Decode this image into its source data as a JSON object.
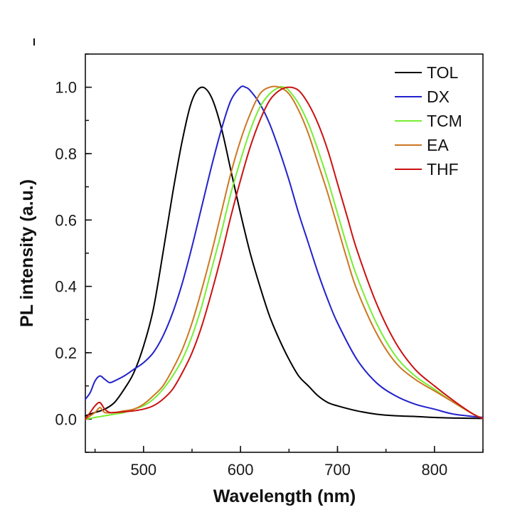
{
  "chart_data": {
    "type": "line",
    "title": "",
    "xlabel": "Wavelength (nm)",
    "ylabel": "PL intensity (a.u.)",
    "xlim": [
      440,
      850
    ],
    "ylim": [
      -0.1,
      1.1
    ],
    "xticks": [
      500,
      600,
      700,
      800
    ],
    "xtick_labels": [
      "500",
      "600",
      "700",
      "800"
    ],
    "yticks": [
      0.0,
      0.2,
      0.4,
      0.6,
      0.8,
      1.0
    ],
    "ytick_labels": [
      "0.0",
      "0.2",
      "0.4",
      "0.6",
      "0.8",
      "1.0"
    ],
    "grid": false,
    "legend_position": "top-right",
    "series": [
      {
        "name": "TOL",
        "color": "#000000",
        "x": [
          440,
          450,
          460,
          470,
          480,
          490,
          500,
          510,
          520,
          530,
          540,
          550,
          560,
          570,
          580,
          590,
          600,
          610,
          620,
          630,
          640,
          650,
          660,
          670,
          680,
          690,
          700,
          720,
          740,
          760,
          780,
          800,
          825,
          850
        ],
        "y": [
          0.01,
          0.02,
          0.03,
          0.05,
          0.09,
          0.14,
          0.22,
          0.33,
          0.5,
          0.68,
          0.84,
          0.96,
          1.0,
          0.97,
          0.88,
          0.75,
          0.62,
          0.5,
          0.4,
          0.31,
          0.24,
          0.18,
          0.13,
          0.1,
          0.07,
          0.05,
          0.04,
          0.025,
          0.015,
          0.01,
          0.008,
          0.005,
          0.003,
          0.002
        ]
      },
      {
        "name": "DX",
        "color": "#2222cc",
        "x": [
          440,
          445,
          450,
          455,
          460,
          465,
          470,
          480,
          490,
          500,
          510,
          520,
          530,
          540,
          550,
          560,
          570,
          580,
          590,
          600,
          605,
          610,
          620,
          630,
          640,
          650,
          660,
          670,
          680,
          690,
          700,
          720,
          740,
          760,
          780,
          800,
          820,
          850
        ],
        "y": [
          0.06,
          0.08,
          0.115,
          0.13,
          0.12,
          0.11,
          0.115,
          0.13,
          0.15,
          0.17,
          0.2,
          0.25,
          0.32,
          0.41,
          0.52,
          0.64,
          0.76,
          0.87,
          0.96,
          1.0,
          1.0,
          0.99,
          0.95,
          0.89,
          0.81,
          0.72,
          0.62,
          0.53,
          0.44,
          0.36,
          0.29,
          0.18,
          0.11,
          0.07,
          0.045,
          0.03,
          0.015,
          0.005
        ]
      },
      {
        "name": "TCM",
        "color": "#77ee33",
        "x": [
          440,
          450,
          460,
          470,
          480,
          490,
          500,
          510,
          520,
          530,
          540,
          550,
          560,
          570,
          580,
          590,
          600,
          610,
          620,
          630,
          640,
          645,
          650,
          660,
          670,
          680,
          690,
          700,
          710,
          720,
          740,
          760,
          780,
          800,
          820,
          840,
          850
        ],
        "y": [
          0.0,
          0.005,
          0.01,
          0.015,
          0.02,
          0.03,
          0.04,
          0.06,
          0.09,
          0.13,
          0.18,
          0.25,
          0.34,
          0.45,
          0.56,
          0.68,
          0.78,
          0.87,
          0.94,
          0.98,
          1.0,
          1.0,
          0.99,
          0.95,
          0.89,
          0.81,
          0.72,
          0.62,
          0.52,
          0.43,
          0.29,
          0.19,
          0.13,
          0.09,
          0.05,
          0.015,
          0.002
        ]
      },
      {
        "name": "EA",
        "color": "#cc7722",
        "x": [
          440,
          450,
          455,
          460,
          470,
          480,
          490,
          500,
          510,
          520,
          530,
          540,
          550,
          560,
          570,
          580,
          590,
          600,
          610,
          620,
          630,
          640,
          650,
          660,
          670,
          680,
          690,
          700,
          710,
          720,
          740,
          760,
          780,
          800,
          820,
          840,
          850
        ],
        "y": [
          0.0,
          0.02,
          0.035,
          0.02,
          0.02,
          0.025,
          0.03,
          0.045,
          0.07,
          0.1,
          0.15,
          0.21,
          0.29,
          0.39,
          0.5,
          0.62,
          0.74,
          0.84,
          0.92,
          0.98,
          1.0,
          1.0,
          0.98,
          0.93,
          0.86,
          0.77,
          0.68,
          0.58,
          0.48,
          0.39,
          0.26,
          0.17,
          0.12,
          0.085,
          0.05,
          0.015,
          0.002
        ]
      },
      {
        "name": "THF",
        "color": "#cc1111",
        "x": [
          440,
          445,
          450,
          455,
          460,
          465,
          470,
          480,
          490,
          500,
          510,
          520,
          530,
          540,
          550,
          560,
          570,
          580,
          590,
          600,
          610,
          620,
          630,
          640,
          650,
          660,
          670,
          680,
          690,
          700,
          710,
          720,
          740,
          760,
          780,
          800,
          820,
          840,
          850
        ],
        "y": [
          0.0,
          0.02,
          0.04,
          0.05,
          0.03,
          0.02,
          0.02,
          0.022,
          0.025,
          0.03,
          0.04,
          0.06,
          0.09,
          0.14,
          0.2,
          0.28,
          0.38,
          0.49,
          0.61,
          0.72,
          0.82,
          0.9,
          0.96,
          0.99,
          1.0,
          0.99,
          0.95,
          0.89,
          0.81,
          0.71,
          0.61,
          0.51,
          0.35,
          0.23,
          0.15,
          0.1,
          0.055,
          0.015,
          0.002
        ]
      }
    ]
  }
}
